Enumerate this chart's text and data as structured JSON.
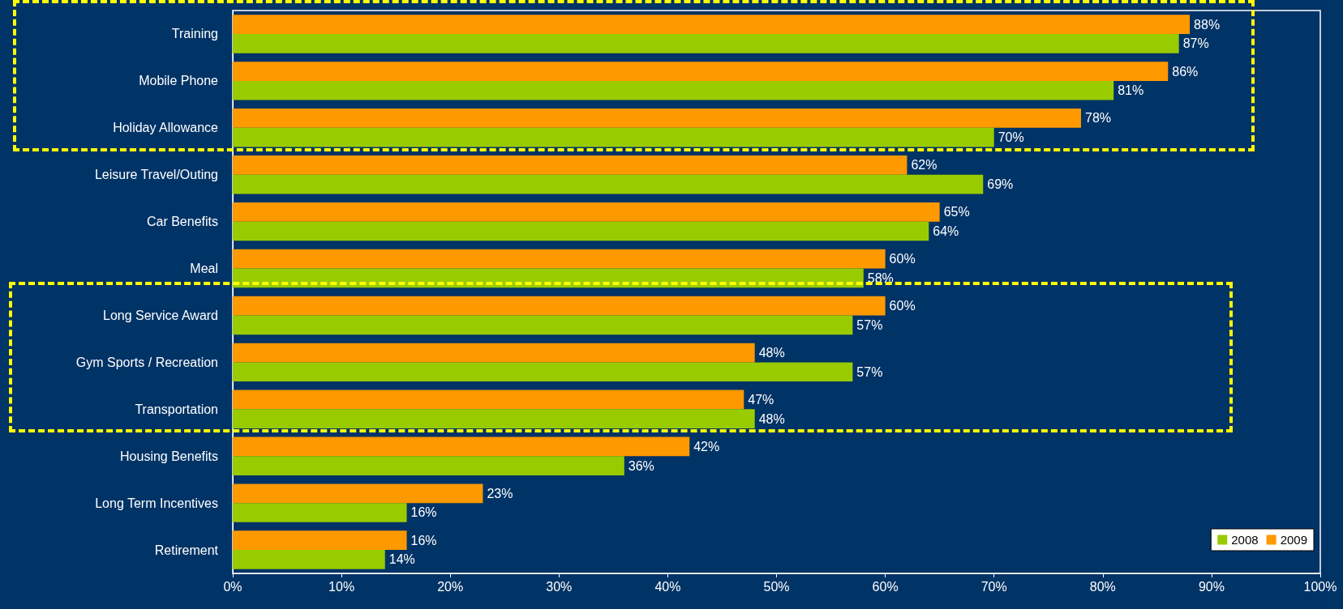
{
  "chart_data": {
    "type": "bar",
    "orientation": "horizontal",
    "categories": [
      "Training",
      "Mobile Phone",
      "Holiday Allowance",
      "Leisure Travel/Outing",
      "Car Benefits",
      "Meal",
      "Long Service Award",
      "Gym Sports / Recreation",
      "Transportation",
      "Housing Benefits",
      "Long Term Incentives",
      "Retirement"
    ],
    "series": [
      {
        "name": "2008",
        "color": "#99cc00",
        "values": [
          87,
          81,
          70,
          69,
          64,
          58,
          57,
          57,
          48,
          36,
          16,
          14
        ],
        "value_labels": [
          "87%",
          "81%",
          "70%",
          "69%",
          "64%",
          "58%",
          "57%",
          "57%",
          "48%",
          "36%",
          "16%",
          "14%"
        ]
      },
      {
        "name": "2009",
        "color": "#ff9900",
        "values": [
          88,
          86,
          78,
          62,
          65,
          60,
          60,
          48,
          47,
          42,
          23,
          16
        ],
        "value_labels": [
          "88%",
          "86%",
          "78%",
          "62%",
          "65%",
          "60%",
          "60%",
          "48%",
          "47%",
          "42%",
          "23%",
          "16%"
        ]
      }
    ],
    "xlim": [
      0,
      100
    ],
    "xticks": [
      {
        "value": 0,
        "label": "0%"
      },
      {
        "value": 10,
        "label": "10%"
      },
      {
        "value": 20,
        "label": "20%"
      },
      {
        "value": 30,
        "label": "30%"
      },
      {
        "value": 40,
        "label": "40%"
      },
      {
        "value": 50,
        "label": "50%"
      },
      {
        "value": 60,
        "label": "60%"
      },
      {
        "value": 70,
        "label": "70%"
      },
      {
        "value": 80,
        "label": "80%"
      },
      {
        "value": 90,
        "label": "90%"
      },
      {
        "value": 100,
        "label": "100%"
      }
    ],
    "grid": false,
    "legend": "bottom right"
  }
}
